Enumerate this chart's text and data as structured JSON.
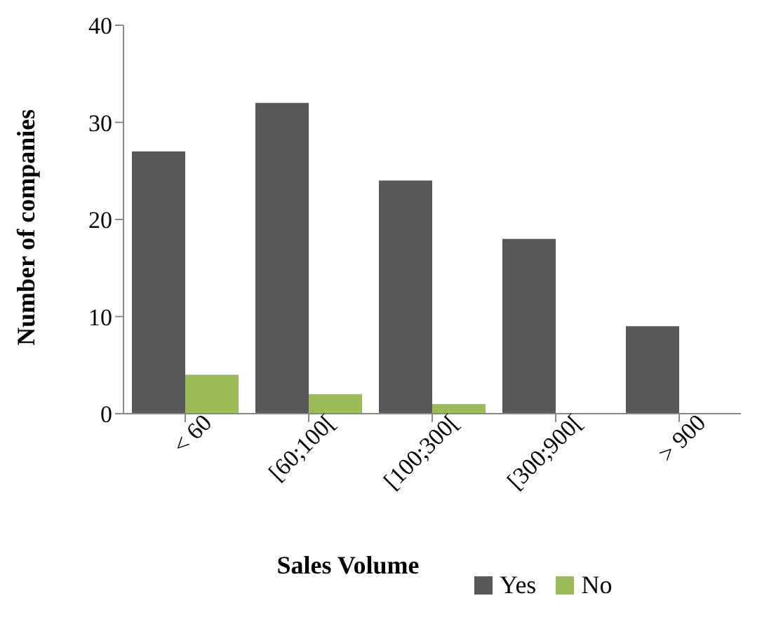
{
  "chart_data": {
    "type": "bar",
    "xlabel": "Sales Volume",
    "ylabel": "Number of companies",
    "categories": [
      "< 60",
      "[60;100[",
      "[100;300[",
      "[300;900[",
      "> 900"
    ],
    "series": [
      {
        "name": "Yes",
        "color": "#595959",
        "values": [
          27,
          32,
          24,
          18,
          9
        ]
      },
      {
        "name": "No",
        "color": "#9bbb59",
        "values": [
          4,
          2,
          1,
          null,
          null
        ]
      }
    ],
    "ylim": [
      0,
      40
    ],
    "yticks": [
      0,
      10,
      20,
      30,
      40
    ],
    "legend": "bottom"
  }
}
